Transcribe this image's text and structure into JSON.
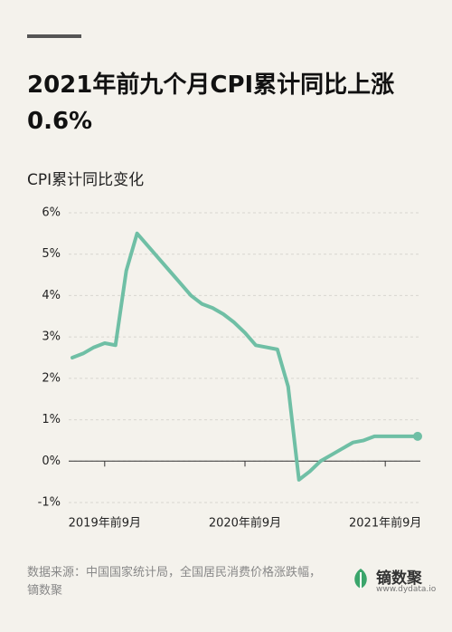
{
  "chart_data": {
    "type": "line",
    "title": "2021年前九个月CPI累计同比上涨0.6%",
    "subtitle": "CPI累计同比变化",
    "source": "数据来源：中国国家统计局，全国居民消费价格涨跌幅，镝数聚",
    "brand": "镝数聚",
    "brand_url": "www.dydata.io",
    "categories": [
      null,
      null,
      null,
      "2019年前9月",
      null,
      null,
      null,
      null,
      null,
      null,
      null,
      null,
      null,
      null,
      null,
      null,
      "2020年前9月",
      null,
      null,
      null,
      null,
      null,
      null,
      null,
      null,
      null,
      null,
      null,
      null,
      "2021年前9月",
      null,
      null,
      null
    ],
    "series": [
      {
        "name": "CPI累计同比",
        "color": "#6fbfa5",
        "values": [
          2.5,
          2.6,
          2.75,
          2.85,
          2.8,
          4.6,
          5.5,
          5.2,
          4.9,
          4.6,
          4.3,
          4.0,
          3.8,
          3.7,
          3.55,
          3.35,
          3.1,
          2.8,
          2.75,
          2.7,
          1.8,
          -0.45,
          -0.25,
          0.0,
          0.15,
          0.3,
          0.45,
          0.5,
          0.6,
          0.6,
          0.6,
          0.6,
          0.6
        ]
      }
    ],
    "ylim": [
      -1,
      6
    ],
    "yticks": [
      {
        "value": -1,
        "label": "-1%"
      },
      {
        "value": 0,
        "label": "0%"
      },
      {
        "value": 1,
        "label": "1%"
      },
      {
        "value": 2,
        "label": "2%"
      },
      {
        "value": 3,
        "label": "3%"
      },
      {
        "value": 4,
        "label": "4%"
      },
      {
        "value": 5,
        "label": "5%"
      },
      {
        "value": 6,
        "label": "6%"
      }
    ],
    "grid": true
  }
}
